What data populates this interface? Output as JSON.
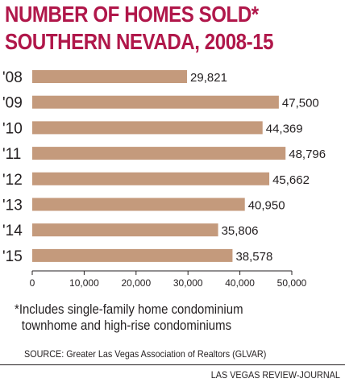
{
  "title": {
    "line1": "NUMBER OF HOMES SOLD*",
    "line2": "SOUTHERN NEVADA, 2008-15"
  },
  "footnote": {
    "line1": "*Includes single-family home condominium",
    "line2": "townhome and high-rise condominiums"
  },
  "source": "SOURCE: Greater Las Vegas Association of Realtors (GLVAR)",
  "credit": "LAS VEGAS REVIEW-JOURNAL",
  "colors": {
    "bar": "#c49a7c",
    "title": "#b0174a",
    "text": "#231f20"
  },
  "chart_data": {
    "type": "bar",
    "orientation": "horizontal",
    "title": "NUMBER OF HOMES SOLD* SOUTHERN NEVADA, 2008-15",
    "xlabel": "",
    "ylabel": "",
    "categories": [
      "'08",
      "'09",
      "'10",
      "'11",
      "'12",
      "'13",
      "'14",
      "'15"
    ],
    "values": [
      29821,
      47500,
      44369,
      48796,
      45662,
      40950,
      35806,
      38578
    ],
    "value_labels": [
      "29,821",
      "47,500",
      "44,369",
      "48,796",
      "45,662",
      "40,950",
      "35,806",
      "38,578"
    ],
    "xlim": [
      0,
      50000
    ],
    "xticks": [
      0,
      10000,
      20000,
      30000,
      40000,
      50000
    ],
    "xtick_labels": [
      "0",
      "10,000",
      "20,000",
      "30,000",
      "40,000",
      "50,000"
    ],
    "grid": false,
    "legend": "none"
  }
}
